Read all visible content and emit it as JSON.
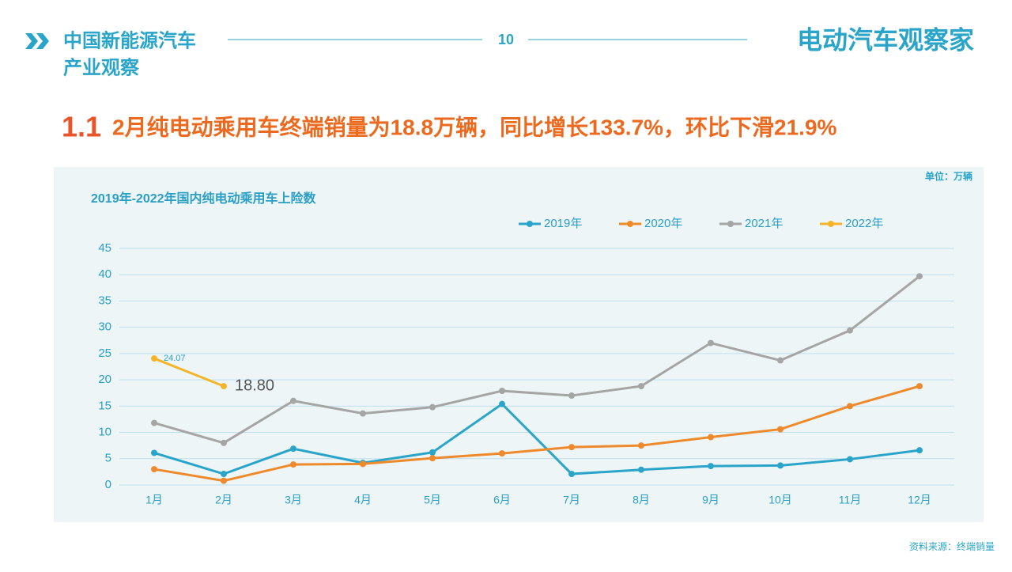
{
  "header": {
    "title_line1": "中国新能源汽车",
    "title_line2": "产业观察",
    "page_number": "10",
    "brand": "电动汽车观察家"
  },
  "heading": {
    "number": "1.1",
    "text": "2月纯电动乘用车终端销量为18.8万辆，同比增长133.7%，环比下滑21.9%"
  },
  "chart_data": {
    "type": "line",
    "title": "2019年-2022年国内纯电动乘用车上险数",
    "unit": "单位：万辆",
    "categories": [
      "1月",
      "2月",
      "3月",
      "4月",
      "5月",
      "6月",
      "7月",
      "8月",
      "9月",
      "10月",
      "11月",
      "12月"
    ],
    "series": [
      {
        "name": "2019年",
        "color": "#2aa5c9",
        "values": [
          6.1,
          2.1,
          6.9,
          4.2,
          6.2,
          15.4,
          2.1,
          2.9,
          3.6,
          3.7,
          4.9,
          6.6
        ]
      },
      {
        "name": "2020年",
        "color": "#ee8a2b",
        "values": [
          3.0,
          0.8,
          3.9,
          4.0,
          5.1,
          6.0,
          7.2,
          7.5,
          9.1,
          10.6,
          15.0,
          18.8
        ]
      },
      {
        "name": "2021年",
        "color": "#a5a5a5",
        "values": [
          11.8,
          8.0,
          16.0,
          13.6,
          14.8,
          17.9,
          17.0,
          18.8,
          27.0,
          23.7,
          29.4,
          39.7
        ]
      },
      {
        "name": "2022年",
        "color": "#f5b52a",
        "values": [
          24.07,
          18.8,
          null,
          null,
          null,
          null,
          null,
          null,
          null,
          null,
          null,
          null
        ],
        "value_labels": [
          "24.07",
          "18.80",
          null,
          null,
          null,
          null,
          null,
          null,
          null,
          null,
          null,
          null
        ]
      }
    ],
    "ylim": [
      0,
      45
    ],
    "yticks": [
      0,
      5,
      10,
      15,
      20,
      25,
      30,
      35,
      40,
      45
    ],
    "grid": true,
    "legend": "top"
  },
  "source": "资料来源：终端销量"
}
